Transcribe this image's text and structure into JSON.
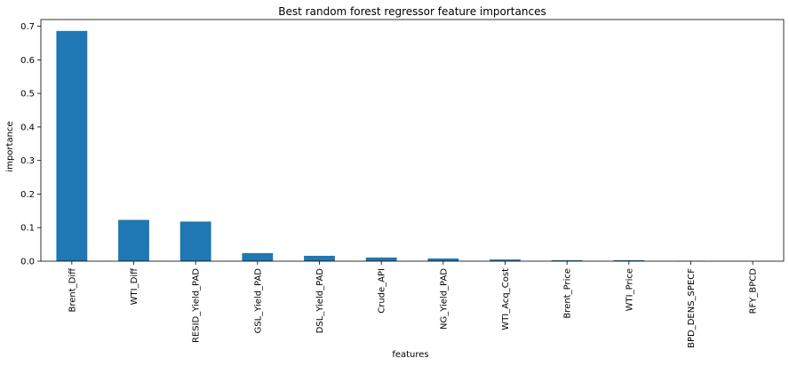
{
  "chart_data": {
    "type": "bar",
    "title": "Best random forest regressor feature importances",
    "xlabel": "features",
    "ylabel": "importance",
    "categories": [
      "Brent_Diff",
      "WTI_Diff",
      "RESID_Yield_PAD",
      "GSL_Yield_PAD",
      "DSL_Yield_PAD",
      "Crude_API",
      "NG_Yield_PAD",
      "WTI_Acq_Cost",
      "Brent_Price",
      "WTI_Price",
      "BPD_DENS_SPECF",
      "RFY_BPCD"
    ],
    "values": [
      0.686,
      0.123,
      0.118,
      0.024,
      0.016,
      0.011,
      0.008,
      0.005,
      0.003,
      0.003,
      0.001,
      0.0
    ],
    "ylim": [
      0,
      0.72
    ],
    "yticks": [
      "0.0",
      "0.1",
      "0.2",
      "0.3",
      "0.4",
      "0.5",
      "0.6",
      "0.7"
    ],
    "bar_color": "#1f77b4",
    "grid": false,
    "legend": "none"
  }
}
